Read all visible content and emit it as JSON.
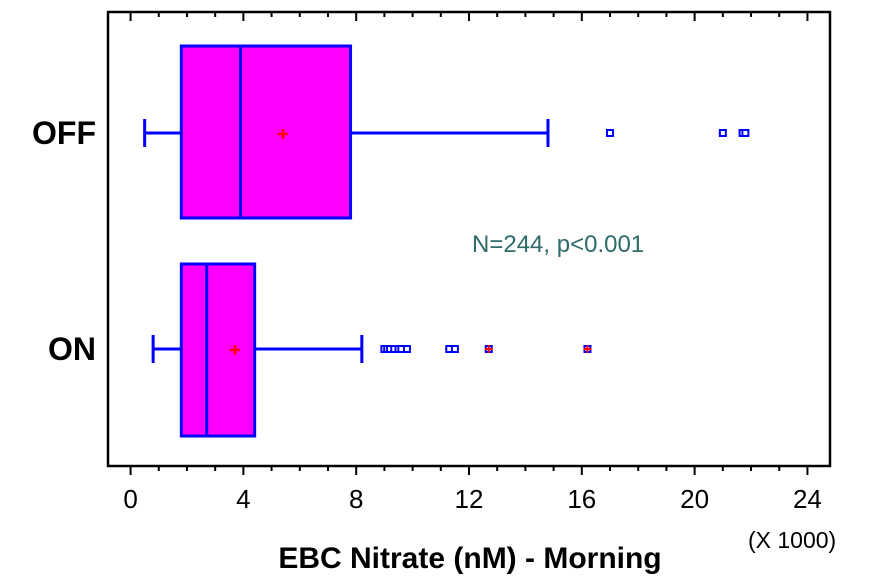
{
  "chart_data": {
    "type": "box",
    "xlabel": "EBC Nitrate (nM) - Morning",
    "x_multiplier_label": "(X 1000)",
    "xlim": [
      -0.8,
      24.8
    ],
    "xticks": [
      0,
      4,
      8,
      12,
      16,
      20,
      24
    ],
    "xtick_labels": [
      "0",
      "4",
      "8",
      "12",
      "16",
      "20",
      "24"
    ],
    "categories": [
      "OFF",
      "ON"
    ],
    "annotation": "N=244, p<0.001",
    "grid": false,
    "boxes": [
      {
        "category": "OFF",
        "whisker_low": 0.5,
        "q1": 1.8,
        "median": 3.9,
        "mean": 5.4,
        "q3": 7.8,
        "whisker_high": 14.8,
        "outliers": [
          17.0,
          21.0,
          21.7,
          21.8
        ]
      },
      {
        "category": "ON",
        "whisker_low": 0.8,
        "q1": 1.8,
        "median": 2.7,
        "mean": 3.7,
        "q3": 4.4,
        "whisker_high": 8.2,
        "outliers": [
          9.0,
          9.1,
          9.2,
          9.35,
          9.5,
          9.6,
          9.8,
          11.3,
          11.5,
          12.7,
          16.2
        ]
      }
    ],
    "colors": {
      "box_fill": "#ff00ff",
      "box_line": "#0000ff",
      "mean_marker": "#ff0000",
      "outlier": "#0000ff",
      "annotation": "#2e6b6b",
      "axis": "#000000"
    }
  }
}
